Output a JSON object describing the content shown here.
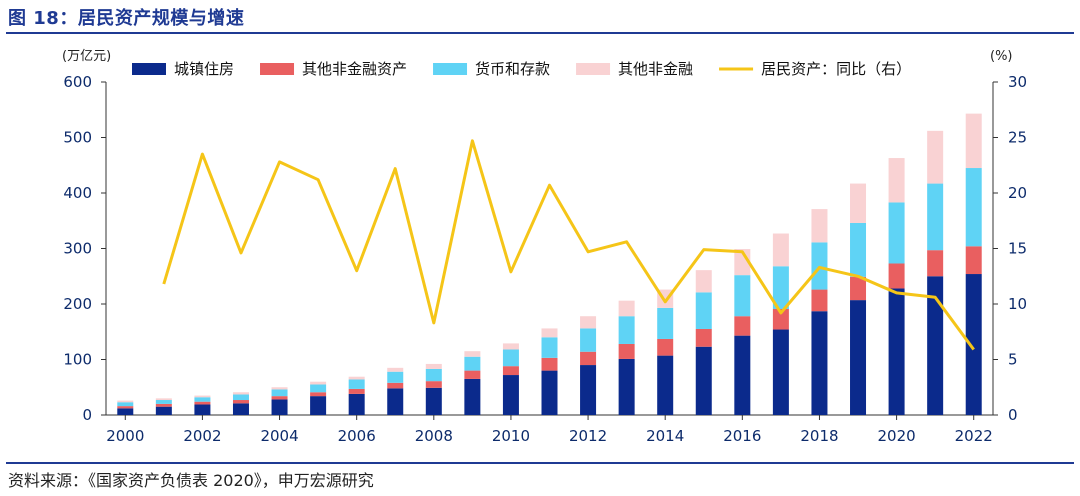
{
  "figure": {
    "title": "图 18：居民资产规模与增速",
    "source": "资料来源：《国家资产负债表 2020》，申万宏源研究"
  },
  "chart_data": {
    "type": "bar",
    "stacked": true,
    "categories": [
      "2000",
      "2001",
      "2002",
      "2003",
      "2004",
      "2005",
      "2006",
      "2007",
      "2008",
      "2009",
      "2010",
      "2011",
      "2012",
      "2013",
      "2014",
      "2015",
      "2016",
      "2017",
      "2018",
      "2019",
      "2020",
      "2021",
      "2022"
    ],
    "x_tick_labels": [
      "2000",
      "2002",
      "2004",
      "2006",
      "2008",
      "2010",
      "2012",
      "2014",
      "2016",
      "2018",
      "2020",
      "2022"
    ],
    "left_axis": {
      "unit": "(万亿元)",
      "range": [
        0,
        600
      ],
      "ticks": [
        0,
        100,
        200,
        300,
        400,
        500,
        600
      ]
    },
    "right_axis": {
      "unit": "(%)",
      "range": [
        0,
        30
      ],
      "ticks": [
        0,
        5,
        10,
        15,
        20,
        25,
        30
      ]
    },
    "legend_position": "top",
    "series": [
      {
        "name": "城镇住房",
        "color": "#0b2a8c",
        "values": [
          12,
          15,
          19,
          21,
          28,
          34,
          38,
          48,
          49,
          65,
          72,
          80,
          90,
          101,
          107,
          123,
          143,
          154,
          187,
          207,
          228,
          250,
          254
        ]
      },
      {
        "name": "其他非金融资产",
        "color": "#e95f60",
        "values": [
          4,
          5,
          5,
          6,
          6,
          7,
          9,
          10,
          12,
          15,
          16,
          23,
          24,
          27,
          30,
          32,
          35,
          37,
          39,
          42,
          45,
          47,
          50
        ]
      },
      {
        "name": "货币和存款",
        "color": "#5fd3f5",
        "values": [
          7,
          7,
          8,
          10,
          12,
          14,
          17,
          20,
          22,
          25,
          30,
          37,
          42,
          50,
          56,
          66,
          74,
          77,
          85,
          97,
          110,
          120,
          141
        ]
      },
      {
        "name": "其他非金融",
        "color": "#f9d2d3",
        "values": [
          3,
          3,
          3,
          4,
          4,
          5,
          5,
          7,
          9,
          10,
          11,
          16,
          22,
          28,
          33,
          40,
          47,
          59,
          60,
          71,
          80,
          95,
          98
        ]
      }
    ],
    "line": {
      "name": "居民资产：同比（右）",
      "color": "#f5c518",
      "axis": "right",
      "values": [
        null,
        11.8,
        23.5,
        14.6,
        22.8,
        21.2,
        13.0,
        22.2,
        8.3,
        24.7,
        12.9,
        20.7,
        14.7,
        15.6,
        10.2,
        14.9,
        14.7,
        9.2,
        13.3,
        12.5,
        11.0,
        10.6,
        5.9
      ]
    }
  }
}
